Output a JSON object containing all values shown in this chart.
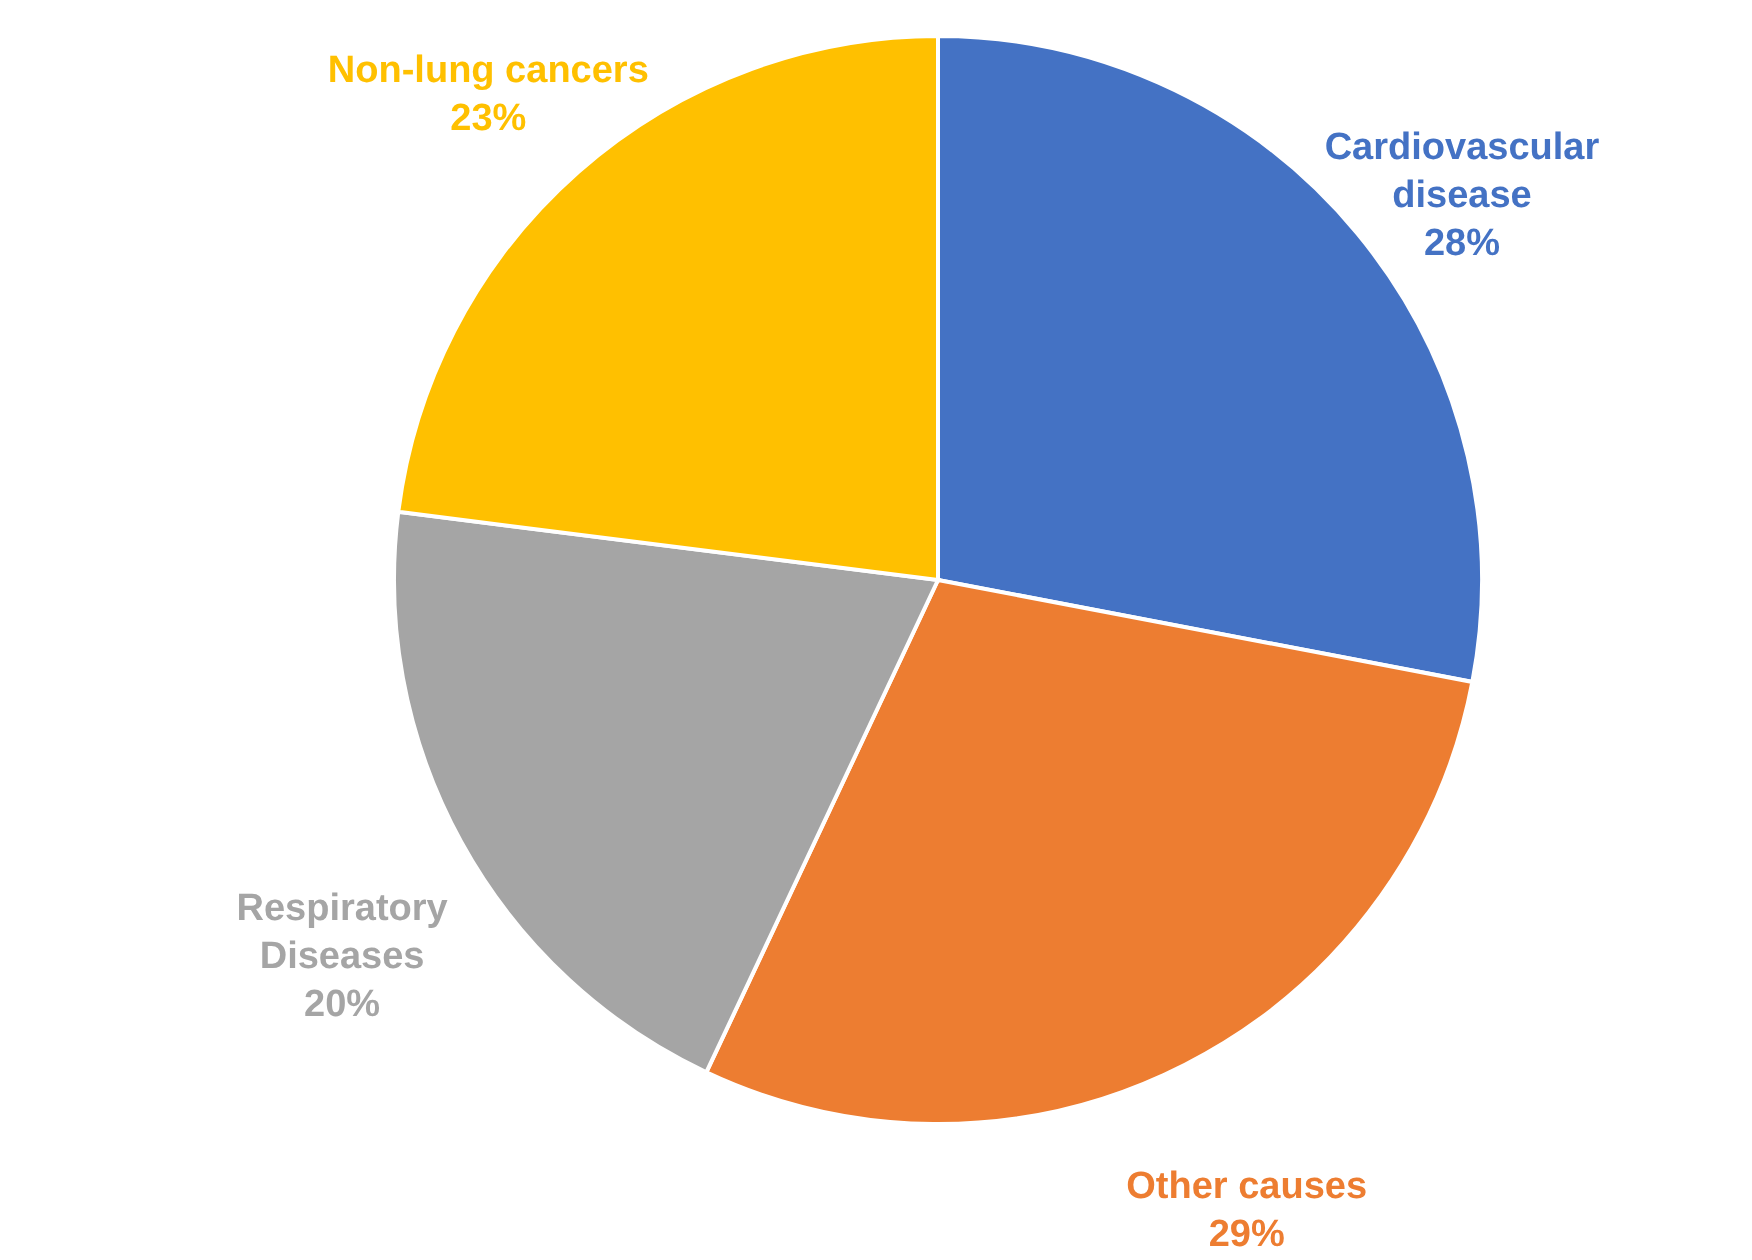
{
  "chart_data": {
    "type": "pie",
    "categories": [
      "Cardiovascular disease",
      "Other causes",
      "Respiratory Diseases",
      "Non-lung cancers"
    ],
    "values": [
      28,
      29,
      20,
      23
    ],
    "colors": [
      "#4472c4",
      "#ed7d31",
      "#a5a5a5",
      "#ffc000"
    ],
    "value_labels": [
      "28%",
      "29%",
      "20%",
      "23%"
    ]
  }
}
